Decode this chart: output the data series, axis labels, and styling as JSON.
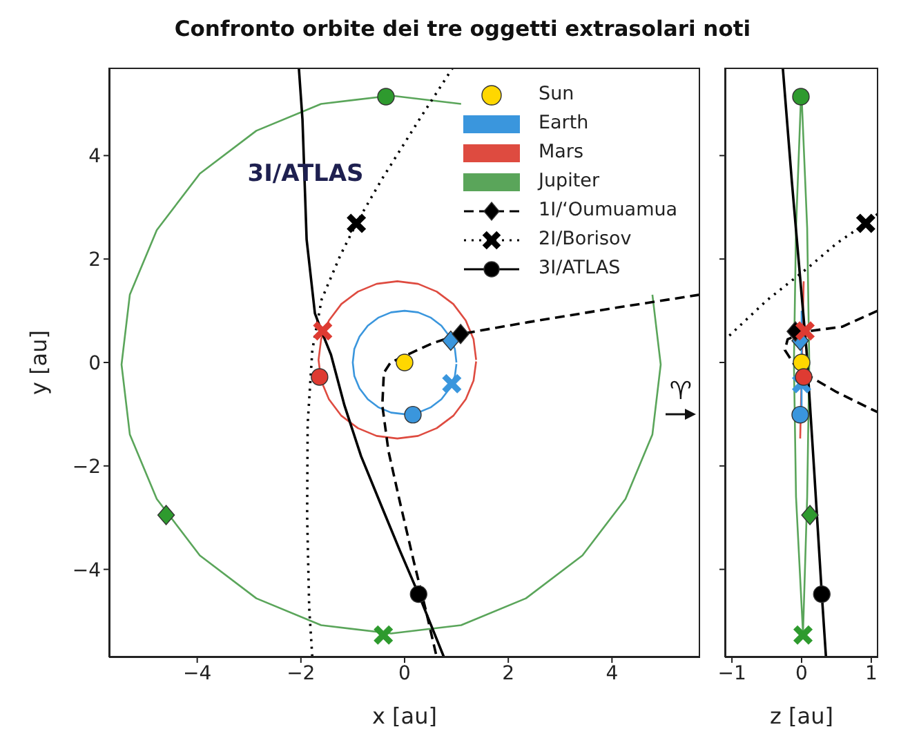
{
  "chart_data": [
    {
      "type": "line",
      "title": "Confronto orbite dei tre oggetti extrasolari noti",
      "xlabel": "x [au]",
      "ylabel": "y [au]",
      "xlim": [
        -5.7,
        5.7
      ],
      "ylim": [
        -5.7,
        5.7
      ],
      "xticks": [
        -4,
        -2,
        0,
        2,
        4
      ],
      "yticks": [
        -4,
        -2,
        0,
        2,
        4
      ],
      "grid": false,
      "legend": "top right",
      "annotations": [
        {
          "text": "3I/ATLAS",
          "x": -1.91,
          "y": 3.65
        },
        "♈"
      ],
      "series": [
        {
          "name": "Sun",
          "type": "scatter",
          "marker": "circle",
          "color": "#ffd700",
          "x": [
            0
          ],
          "values": [
            0
          ]
        },
        {
          "name": "Earth",
          "type": "line",
          "color": "#3a96dd",
          "x": [
            1,
            0.97,
            0.87,
            0.71,
            0.5,
            0.26,
            0,
            -0.26,
            -0.5,
            -0.71,
            -0.87,
            -0.97,
            -1,
            -0.97,
            -0.87,
            -0.71,
            -0.5,
            -0.26,
            0,
            0.26,
            0.5,
            0.71,
            0.87,
            0.97,
            1
          ],
          "values": [
            0,
            0.26,
            0.5,
            0.71,
            0.87,
            0.97,
            1,
            0.97,
            0.87,
            0.71,
            0.5,
            0.26,
            0,
            -0.26,
            -0.5,
            -0.71,
            -0.87,
            -0.97,
            -1,
            -0.97,
            -0.87,
            -0.71,
            -0.5,
            -0.26,
            -0.03
          ]
        },
        {
          "name": "Mars",
          "type": "line",
          "color": "#de4b40",
          "x": [
            1.38,
            1.33,
            1.18,
            0.94,
            0.62,
            0.26,
            -0.14,
            -0.54,
            -0.9,
            -1.22,
            -1.46,
            -1.61,
            -1.66,
            -1.61,
            -1.46,
            -1.22,
            -0.9,
            -0.54,
            -0.14,
            0.26,
            0.62,
            0.94,
            1.18,
            1.33,
            1.38
          ],
          "values": [
            0.05,
            0.45,
            0.81,
            1.13,
            1.37,
            1.52,
            1.57,
            1.52,
            1.37,
            1.13,
            0.81,
            0.45,
            0.05,
            -0.35,
            -0.71,
            -1.03,
            -1.27,
            -1.42,
            -1.47,
            -1.42,
            -1.27,
            -1.03,
            -0.71,
            -0.35,
            0.02
          ]
        },
        {
          "name": "Jupiter",
          "type": "line",
          "color": "#5aa55a",
          "x": [
            1.09,
            -0.26,
            -1.61,
            -2.86,
            -3.95,
            -4.78,
            -5.3,
            -5.46,
            -5.3,
            -4.78,
            -3.95,
            -2.86,
            -1.61,
            -0.26,
            1.09,
            2.34,
            3.43,
            4.26,
            4.78,
            4.94,
            4.78
          ],
          "values": [
            5.0,
            5.16,
            5.0,
            4.48,
            3.65,
            2.56,
            1.31,
            -0.04,
            -1.39,
            -2.64,
            -3.73,
            -4.56,
            -5.08,
            -5.24,
            -5.08,
            -4.56,
            -3.73,
            -2.64,
            -1.39,
            -0.04,
            1.31
          ]
        },
        {
          "name": "1I/ʻOumuamua",
          "type": "line",
          "line_style": "dashed",
          "color": "#000000",
          "x": [
            5.69,
            4.09,
            2.27,
            1.08,
            0.53,
            -0.27,
            -0.4,
            -0.43,
            -0.31,
            -0.09,
            0.18,
            0.4,
            0.62
          ],
          "values": [
            1.31,
            1.06,
            0.76,
            0.55,
            0.37,
            0.0,
            -0.2,
            -0.83,
            -1.72,
            -2.7,
            -3.86,
            -4.75,
            -5.7
          ]
        },
        {
          "name": "2I/Borisov",
          "type": "line",
          "line_style": "dotted",
          "color": "#000000",
          "x": [
            0.93,
            0.31,
            -0.44,
            -0.93,
            -1.24,
            -1.6,
            -1.78,
            -1.87,
            -1.88,
            -1.84,
            -1.78
          ],
          "values": [
            5.7,
            4.74,
            3.54,
            2.69,
            2.07,
            1.22,
            0.24,
            -1.19,
            -2.97,
            -4.75,
            -5.7
          ]
        },
        {
          "name": "3I/ATLAS",
          "type": "line",
          "line_style": "solid",
          "color": "#000000",
          "x": [
            -2.04,
            -1.97,
            -1.89,
            -1.73,
            -1.58,
            -1.42,
            -1.16,
            -0.84,
            -0.44,
            -0.09,
            0.27,
            0.76
          ],
          "values": [
            5.7,
            4.7,
            2.38,
            0.95,
            0.55,
            0.15,
            -0.83,
            -1.81,
            -2.79,
            -3.64,
            -4.48,
            -5.7
          ]
        },
        {
          "type": "scatter",
          "marker": "diamond",
          "colors": [
            "#3a96dd",
            "#2e9a2e",
            "#000000"
          ],
          "x": [
            0.89,
            -4.6,
            1.08
          ],
          "values": [
            0.42,
            -2.95,
            0.55
          ]
        },
        {
          "type": "scatter",
          "marker": "cross",
          "colors": [
            "#3a96dd",
            "#de3b32",
            "#2e9a2e",
            "#000000"
          ],
          "x": [
            0.91,
            -1.58,
            -0.41,
            -0.93
          ],
          "values": [
            -0.41,
            0.61,
            -5.27,
            2.69
          ]
        },
        {
          "type": "scatter",
          "marker": "circle",
          "colors": [
            "#3a96dd",
            "#de3b32",
            "#2e9a2e",
            "#000000"
          ],
          "x": [
            0.16,
            -1.64,
            -0.36,
            0.27
          ],
          "values": [
            -1.01,
            -0.28,
            5.14,
            -4.48
          ]
        }
      ]
    },
    {
      "type": "line",
      "xlabel": "z [au]",
      "xlim": [
        -1.1,
        1.1
      ],
      "ylim": [
        -5.7,
        5.7
      ],
      "xticks": [
        -1,
        0,
        1
      ],
      "yticks": [
        -4,
        -2,
        0,
        2,
        4
      ],
      "tick_labels": "x",
      "grid": false,
      "series": [
        {
          "type": "line",
          "color": "#5aa55a",
          "x": [
            0,
            0.08,
            0.11,
            0.08,
            0.02,
            -0.08,
            -0.11,
            -0.08,
            -0.01
          ],
          "values": [
            5.16,
            2.6,
            0,
            -2.6,
            -5.24,
            -2.6,
            0,
            2.6,
            5.1
          ]
        },
        {
          "type": "line",
          "color": "#de4b40",
          "x": [
            0.03,
            -0.02
          ],
          "values": [
            1.57,
            -1.47
          ]
        },
        {
          "type": "line",
          "color": "#3a96dd",
          "x": [
            0,
            0
          ],
          "values": [
            1,
            -1
          ]
        },
        {
          "type": "line",
          "line_style": "dashed",
          "color": "#000000",
          "x": [
            1.09,
            0.58,
            0.07,
            -0.2,
            -0.24,
            -0.1,
            0.03,
            0.5,
            1.09
          ],
          "values": [
            1.0,
            0.69,
            0.6,
            0.45,
            0.24,
            -0.05,
            -0.2,
            -0.57,
            -0.96
          ]
        },
        {
          "type": "line",
          "line_style": "dotted",
          "color": "#000000",
          "x": [
            1.09,
            0.92,
            0.5,
            0.1,
            -0.5,
            -1.06
          ],
          "values": [
            2.87,
            2.69,
            2.3,
            1.84,
            1.2,
            0.49
          ]
        },
        {
          "type": "line",
          "line_style": "solid",
          "color": "#000000",
          "x": [
            -0.27,
            -0.14,
            0,
            0.07,
            0.18,
            0.29,
            0.35
          ],
          "values": [
            5.7,
            3.5,
            1.31,
            0.24,
            -2.08,
            -4.48,
            -5.7
          ]
        },
        {
          "type": "scatter",
          "marker": "circle",
          "color": "#ffd700",
          "x": [
            0
          ],
          "values": [
            0
          ]
        },
        {
          "type": "scatter",
          "marker": "diamond",
          "colors": [
            "#3a96dd",
            "#2e9a2e",
            "#000000"
          ],
          "x": [
            -0.02,
            0.12,
            -0.09
          ],
          "values": [
            0.42,
            -2.95,
            0.6
          ]
        },
        {
          "type": "scatter",
          "marker": "cross",
          "colors": [
            "#3a96dd",
            "#de3b32",
            "#2e9a2e",
            "#000000"
          ],
          "x": [
            0,
            0.05,
            0.02,
            0.92
          ],
          "values": [
            -0.41,
            0.61,
            -5.27,
            2.69
          ]
        },
        {
          "type": "scatter",
          "marker": "circle",
          "colors": [
            "#3a96dd",
            "#de3b32",
            "#2e9a2e",
            "#000000"
          ],
          "x": [
            -0.02,
            0.03,
            -0.01,
            0.29
          ],
          "values": [
            -1.01,
            -0.28,
            5.14,
            -4.48
          ]
        }
      ]
    }
  ]
}
